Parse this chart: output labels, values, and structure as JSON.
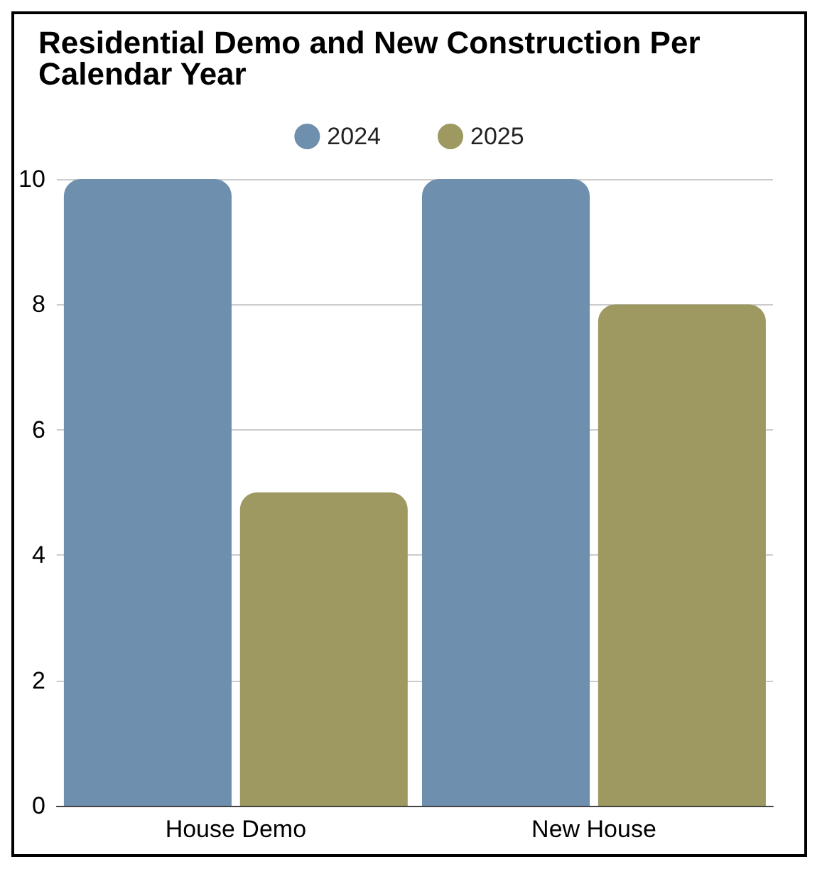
{
  "chart_data": {
    "type": "bar",
    "title": "Residential Demo and New Construction Per Calendar Year",
    "categories": [
      "House Demo",
      "New House"
    ],
    "series": [
      {
        "name": "2024",
        "color": "#6e8fae",
        "values": [
          10,
          10
        ]
      },
      {
        "name": "2025",
        "color": "#9e9960",
        "values": [
          5,
          8
        ]
      }
    ],
    "ylim": [
      0,
      10
    ],
    "yticks": [
      0,
      2,
      4,
      6,
      8,
      10
    ],
    "grid": "y",
    "legend": "top"
  }
}
